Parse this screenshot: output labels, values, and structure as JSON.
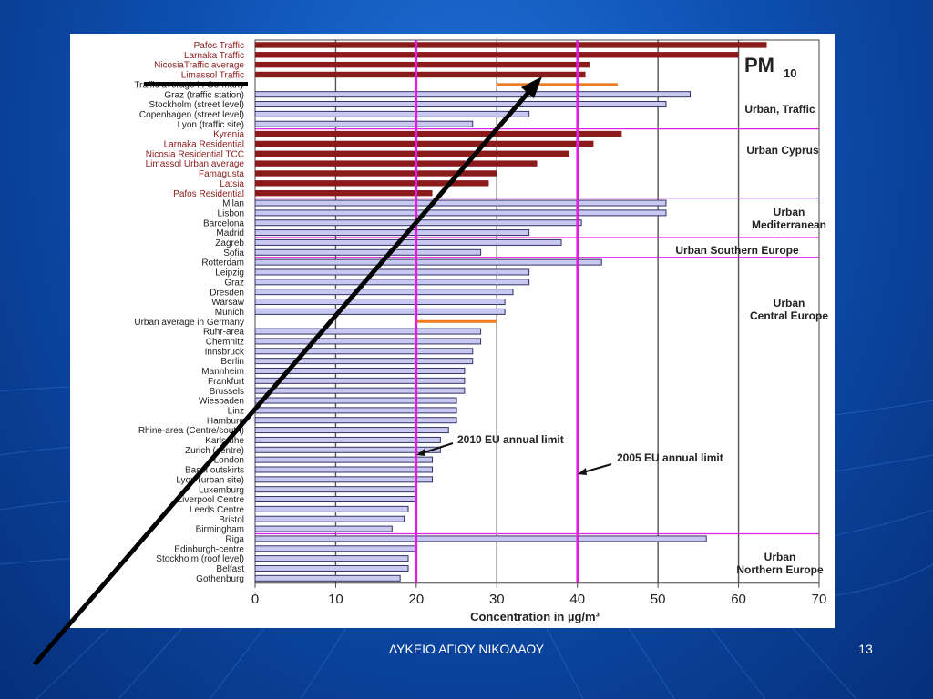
{
  "slide": {
    "footer": "ΛΥΚΕΙΟ ΑΓΙΟΥ ΝΙΚΟΛΑΟΥ",
    "page_number": "13"
  },
  "chart_data": {
    "type": "bar",
    "orientation": "horizontal",
    "title": "PM",
    "title_subscript": "10",
    "xlabel": "Concentration in µg/m³",
    "ylabel": "",
    "xlim": [
      0,
      70
    ],
    "xticks": [
      "0",
      "10",
      "20",
      "30",
      "40",
      "50",
      "60",
      "70"
    ],
    "colors": {
      "cyprus": "#8b1a1a",
      "other": "#c8c8f0",
      "germany_average": "#f07b1e",
      "limit": "#e020e0"
    },
    "limits": [
      {
        "value": 20,
        "label": "2010 EU annual limit"
      },
      {
        "value": 40,
        "label": "2005 EU annual limit"
      }
    ],
    "groups": [
      {
        "label": "Urban, Traffic"
      },
      {
        "label": "Urban Cyprus"
      },
      {
        "label": "Urban Mediterranean"
      },
      {
        "label": "Urban Southern Europe"
      },
      {
        "label": "Urban Central Europe"
      },
      {
        "label": "Urban Northern Europe"
      }
    ],
    "categories": [
      {
        "name": "Pafos Traffic",
        "value": 63.5,
        "kind": "cyprus"
      },
      {
        "name": "Larnaka Traffic",
        "value": 60,
        "kind": "cyprus"
      },
      {
        "name": "NicosiaTraffic average",
        "value": 41.5,
        "kind": "cyprus"
      },
      {
        "name": "Limassol Traffic",
        "value": 41,
        "kind": "cyprus"
      },
      {
        "name": "Traffic average in Germany",
        "value": 45,
        "start": 30,
        "kind": "germany_average"
      },
      {
        "name": "Graz (traffic station)",
        "value": 54,
        "kind": "other"
      },
      {
        "name": "Stockholm (street level)",
        "value": 51,
        "kind": "other"
      },
      {
        "name": "Copenhagen (street level)",
        "value": 34,
        "kind": "other"
      },
      {
        "name": "Lyon (traffic site)",
        "value": 27,
        "kind": "other"
      },
      {
        "name": "Kyrenia",
        "value": 45.5,
        "kind": "cyprus"
      },
      {
        "name": "Larnaka Residential",
        "value": 42,
        "kind": "cyprus"
      },
      {
        "name": "Nicosia Residential TCC",
        "value": 39,
        "kind": "cyprus"
      },
      {
        "name": "Limassol Urban average",
        "value": 35,
        "kind": "cyprus"
      },
      {
        "name": "Famagusta",
        "value": 30,
        "kind": "cyprus"
      },
      {
        "name": "Latsia",
        "value": 29,
        "kind": "cyprus"
      },
      {
        "name": "Pafos Residential",
        "value": 22,
        "kind": "cyprus"
      },
      {
        "name": "Milan",
        "value": 51,
        "kind": "other"
      },
      {
        "name": "Lisbon",
        "value": 51,
        "kind": "other"
      },
      {
        "name": "Barcelona",
        "value": 40.5,
        "kind": "other"
      },
      {
        "name": "Madrid",
        "value": 34,
        "kind": "other"
      },
      {
        "name": "Zagreb",
        "value": 38,
        "kind": "other"
      },
      {
        "name": "Sofia",
        "value": 28,
        "kind": "other"
      },
      {
        "name": "Rotterdam",
        "value": 43,
        "kind": "other"
      },
      {
        "name": "Leipzig",
        "value": 34,
        "kind": "other"
      },
      {
        "name": "Graz",
        "value": 34,
        "kind": "other"
      },
      {
        "name": "Dresden",
        "value": 32,
        "kind": "other"
      },
      {
        "name": "Warsaw",
        "value": 31,
        "kind": "other"
      },
      {
        "name": "Munich",
        "value": 31,
        "kind": "other"
      },
      {
        "name": "Urban average in Germany",
        "value": 30,
        "start": 20,
        "kind": "germany_average"
      },
      {
        "name": "Ruhr-area",
        "value": 28,
        "kind": "other"
      },
      {
        "name": "Chemnitz",
        "value": 28,
        "kind": "other"
      },
      {
        "name": "Innsbruck",
        "value": 27,
        "kind": "other"
      },
      {
        "name": "Berlin",
        "value": 27,
        "kind": "other"
      },
      {
        "name": "Mannheim",
        "value": 26,
        "kind": "other"
      },
      {
        "name": "Frankfurt",
        "value": 26,
        "kind": "other"
      },
      {
        "name": "Brussels",
        "value": 26,
        "kind": "other"
      },
      {
        "name": "Wiesbaden",
        "value": 25,
        "kind": "other"
      },
      {
        "name": "Linz",
        "value": 25,
        "kind": "other"
      },
      {
        "name": "Hamburg",
        "value": 25,
        "kind": "other"
      },
      {
        "name": "Rhine-area (Centre/south)",
        "value": 24,
        "kind": "other"
      },
      {
        "name": "Karlsruhe",
        "value": 23,
        "kind": "other"
      },
      {
        "name": "Zurich (centre)",
        "value": 23,
        "kind": "other"
      },
      {
        "name": "London",
        "value": 22,
        "kind": "other"
      },
      {
        "name": "Basel outskirts",
        "value": 22,
        "kind": "other"
      },
      {
        "name": "Lyon (urban site)",
        "value": 22,
        "kind": "other"
      },
      {
        "name": "Luxemburg",
        "value": 20,
        "kind": "other"
      },
      {
        "name": "Liverpool Centre",
        "value": 20,
        "kind": "other"
      },
      {
        "name": "Leeds Centre",
        "value": 19,
        "kind": "other"
      },
      {
        "name": "Bristol",
        "value": 18.5,
        "kind": "other"
      },
      {
        "name": "Birmingham",
        "value": 17,
        "kind": "other"
      },
      {
        "name": "Riga",
        "value": 56,
        "kind": "other"
      },
      {
        "name": "Edinburgh-centre",
        "value": 20,
        "kind": "other"
      },
      {
        "name": "Stockholm (roof level)",
        "value": 19,
        "kind": "other"
      },
      {
        "name": "Belfast",
        "value": 19,
        "kind": "other"
      },
      {
        "name": "Gothenburg",
        "value": 18,
        "kind": "other"
      }
    ]
  }
}
